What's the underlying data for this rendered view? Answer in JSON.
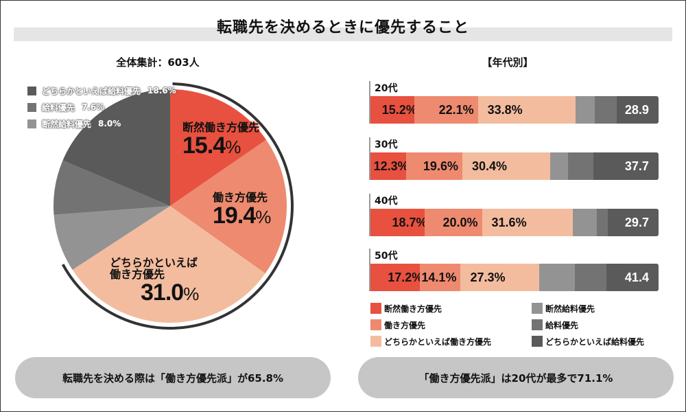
{
  "title": "転職先を決めるときに優先すること",
  "left_subtitle": "全体集計：603人",
  "right_subtitle": "【年代別】",
  "colors": {
    "dansen_hataraki": "#e8513f",
    "hataraki": "#ee8a6f",
    "dochira_hataraki": "#f3bc9e",
    "dansen_kyuryo": "#939393",
    "kyuryo": "#737373",
    "dochira_kyuryo": "#5a5a5a",
    "ring": "#333333",
    "callout_bg": "#c6c6c6",
    "title_band": "#e5e5e5"
  },
  "pie_legend": [
    {
      "label": "どちらかといえば給料優先",
      "pct": "18.6%",
      "color_key": "dochira_kyuryo"
    },
    {
      "label": "給料優先",
      "pct": "7.6%",
      "color_key": "kyuryo"
    },
    {
      "label": "断然給料優先",
      "pct": "8.0%",
      "color_key": "dansen_kyuryo"
    }
  ],
  "pie_labels": [
    {
      "name": "断然働き方優先",
      "value": "15.4"
    },
    {
      "name": "働き方優先",
      "value": "19.4"
    },
    {
      "name_line1": "どちらかといえば",
      "name_line2": "働き方優先",
      "value": "31.0"
    }
  ],
  "percent_sign": "%",
  "callouts": {
    "left": "転職先を決める際は「働き方優先派」が65.8%",
    "right": "「働き方優先派」は20代が最多で71.1%"
  },
  "chart_data": [
    {
      "type": "pie",
      "title": "全体集計：603人",
      "categories": [
        "断然働き方優先",
        "働き方優先",
        "どちらかといえば働き方優先",
        "断然給料優先",
        "給料優先",
        "どちらかといえば給料優先"
      ],
      "values": [
        15.4,
        19.4,
        31.0,
        8.0,
        7.6,
        18.6
      ],
      "unit": "%",
      "start": "12 o'clock",
      "direction": "clockwise",
      "highlight_ring": "働き方優先派 (first three slices)"
    },
    {
      "type": "bar",
      "orientation": "horizontal-stacked-100",
      "title": "【年代別】",
      "categories": [
        "20代",
        "30代",
        "40代",
        "50代"
      ],
      "series": [
        {
          "name": "断然働き方優先",
          "values": [
            15.2,
            12.3,
            18.7,
            17.2
          ],
          "labeled": true
        },
        {
          "name": "働き方優先",
          "values": [
            22.1,
            19.6,
            20.0,
            14.1
          ],
          "labeled": true
        },
        {
          "name": "どちらかといえば働き方優先",
          "values": [
            33.8,
            30.4,
            31.6,
            27.3
          ],
          "labeled": true
        },
        {
          "name": "断然給料優先",
          "values": [
            6.7,
            6.2,
            8.3,
            12.4
          ],
          "labeled": false
        },
        {
          "name": "給料優先",
          "values": [
            7.6,
            8.8,
            3.8,
            11.0
          ],
          "labeled": false
        },
        {
          "name": "どちらかといえば給料優先",
          "values": [
            14.6,
            22.7,
            17.6,
            18.0
          ],
          "labeled": false
        }
      ],
      "salary_total_labels": [
        "28.9",
        "37.7",
        "29.7",
        "41.4"
      ],
      "legend": [
        "断然働き方優先",
        "働き方優先",
        "どちらかといえば働き方優先",
        "断然給料優先",
        "給料優先",
        "どちらかといえば給料優先"
      ],
      "legend_position": "bottom"
    }
  ]
}
